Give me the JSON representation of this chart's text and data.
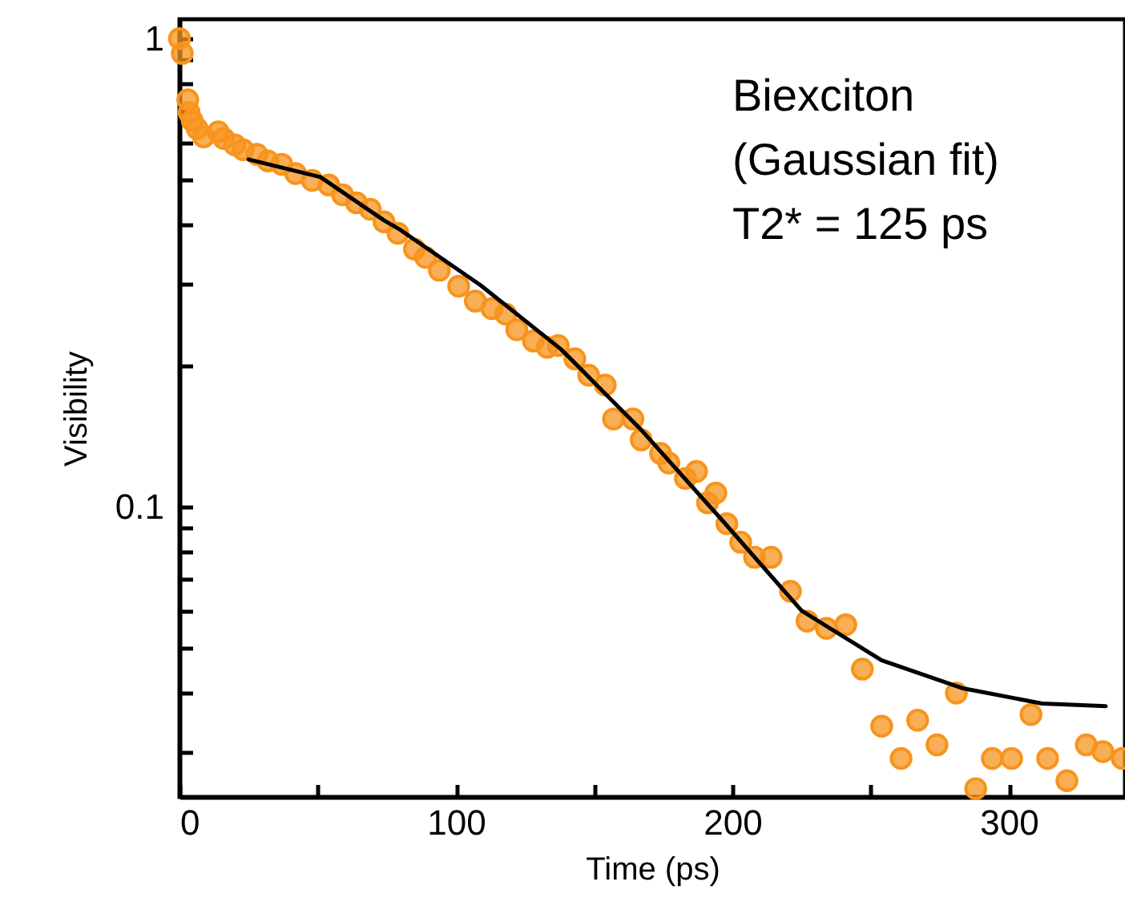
{
  "chart_data": {
    "type": "scatter",
    "xlabel": "Time (ps)",
    "ylabel": "Visibility",
    "annotations": [
      "Biexciton\n(Gaussian fit)\nT2* = 125 ps"
    ],
    "log": "y",
    "xlim": [
      0,
      342
    ],
    "ylim": [
      0.024,
      1.1
    ],
    "grid": false,
    "xticks": [
      0,
      {
        "value": 50,
        "label": null
      },
      100,
      {
        "value": 150,
        "label": null
      },
      200,
      {
        "value": 250,
        "label": null
      },
      300
    ],
    "yticks": [
      {
        "value": 0.03,
        "label": null
      },
      {
        "value": 0.04,
        "label": null
      },
      {
        "value": 0.05,
        "label": null
      },
      {
        "value": 0.06,
        "label": null
      },
      {
        "value": 0.07,
        "label": null
      },
      {
        "value": 0.08,
        "label": null
      },
      {
        "value": 0.09,
        "label": null
      },
      0.1,
      {
        "value": 0.2,
        "label": null
      },
      {
        "value": 0.3,
        "label": null
      },
      {
        "value": 0.4,
        "label": null
      },
      {
        "value": 0.5,
        "label": null
      },
      {
        "value": 0.6,
        "label": null
      },
      {
        "value": 0.7,
        "label": null
      },
      {
        "value": 0.8,
        "label": null
      },
      {
        "value": 0.9,
        "label": null
      },
      1
    ],
    "series": [
      {
        "marker": "circle",
        "color": "#f7941d",
        "x": [
          0,
          1,
          3,
          3.5,
          4.6,
          6.4,
          8.7,
          14,
          16,
          20,
          23,
          28,
          32,
          37,
          42,
          48,
          54,
          59,
          64,
          69,
          74,
          79,
          85,
          89,
          94,
          101,
          107,
          113,
          118,
          122,
          128,
          133,
          137,
          143,
          148,
          154,
          157,
          164,
          167,
          174,
          177,
          183,
          187,
          191,
          194,
          198,
          203,
          208,
          214,
          221,
          227,
          234,
          241,
          247,
          254,
          261,
          267,
          274,
          281,
          288,
          294,
          301,
          308,
          314,
          321,
          328,
          334,
          341
        ],
        "values": [
          1.0,
          0.93,
          0.74,
          0.695,
          0.668,
          0.642,
          0.617,
          0.632,
          0.612,
          0.593,
          0.579,
          0.566,
          0.548,
          0.539,
          0.515,
          0.498,
          0.487,
          0.464,
          0.446,
          0.432,
          0.406,
          0.384,
          0.355,
          0.341,
          0.32,
          0.296,
          0.275,
          0.265,
          0.258,
          0.239,
          0.226,
          0.219,
          0.221,
          0.207,
          0.191,
          0.182,
          0.154,
          0.154,
          0.139,
          0.13,
          0.124,
          0.115,
          0.119,
          0.102,
          0.107,
          0.092,
          0.084,
          0.078,
          0.078,
          0.066,
          0.057,
          0.055,
          0.056,
          0.045,
          0.034,
          0.029,
          0.035,
          0.031,
          0.04,
          0.025,
          0.029,
          0.029,
          0.036,
          0.029,
          0.026,
          0.031,
          0.03,
          0.029
        ]
      },
      {
        "type": "line",
        "line_style": "solid",
        "color": "#000000",
        "x": [
          25,
          51,
          74,
          80,
          109,
          138,
          144,
          167,
          196,
          225,
          254,
          283,
          312,
          335
        ],
        "values": [
          0.552,
          0.506,
          0.409,
          0.39,
          0.297,
          0.217,
          0.2,
          0.146,
          0.094,
          0.06,
          0.047,
          0.041,
          0.038,
          0.0375
        ]
      }
    ]
  }
}
